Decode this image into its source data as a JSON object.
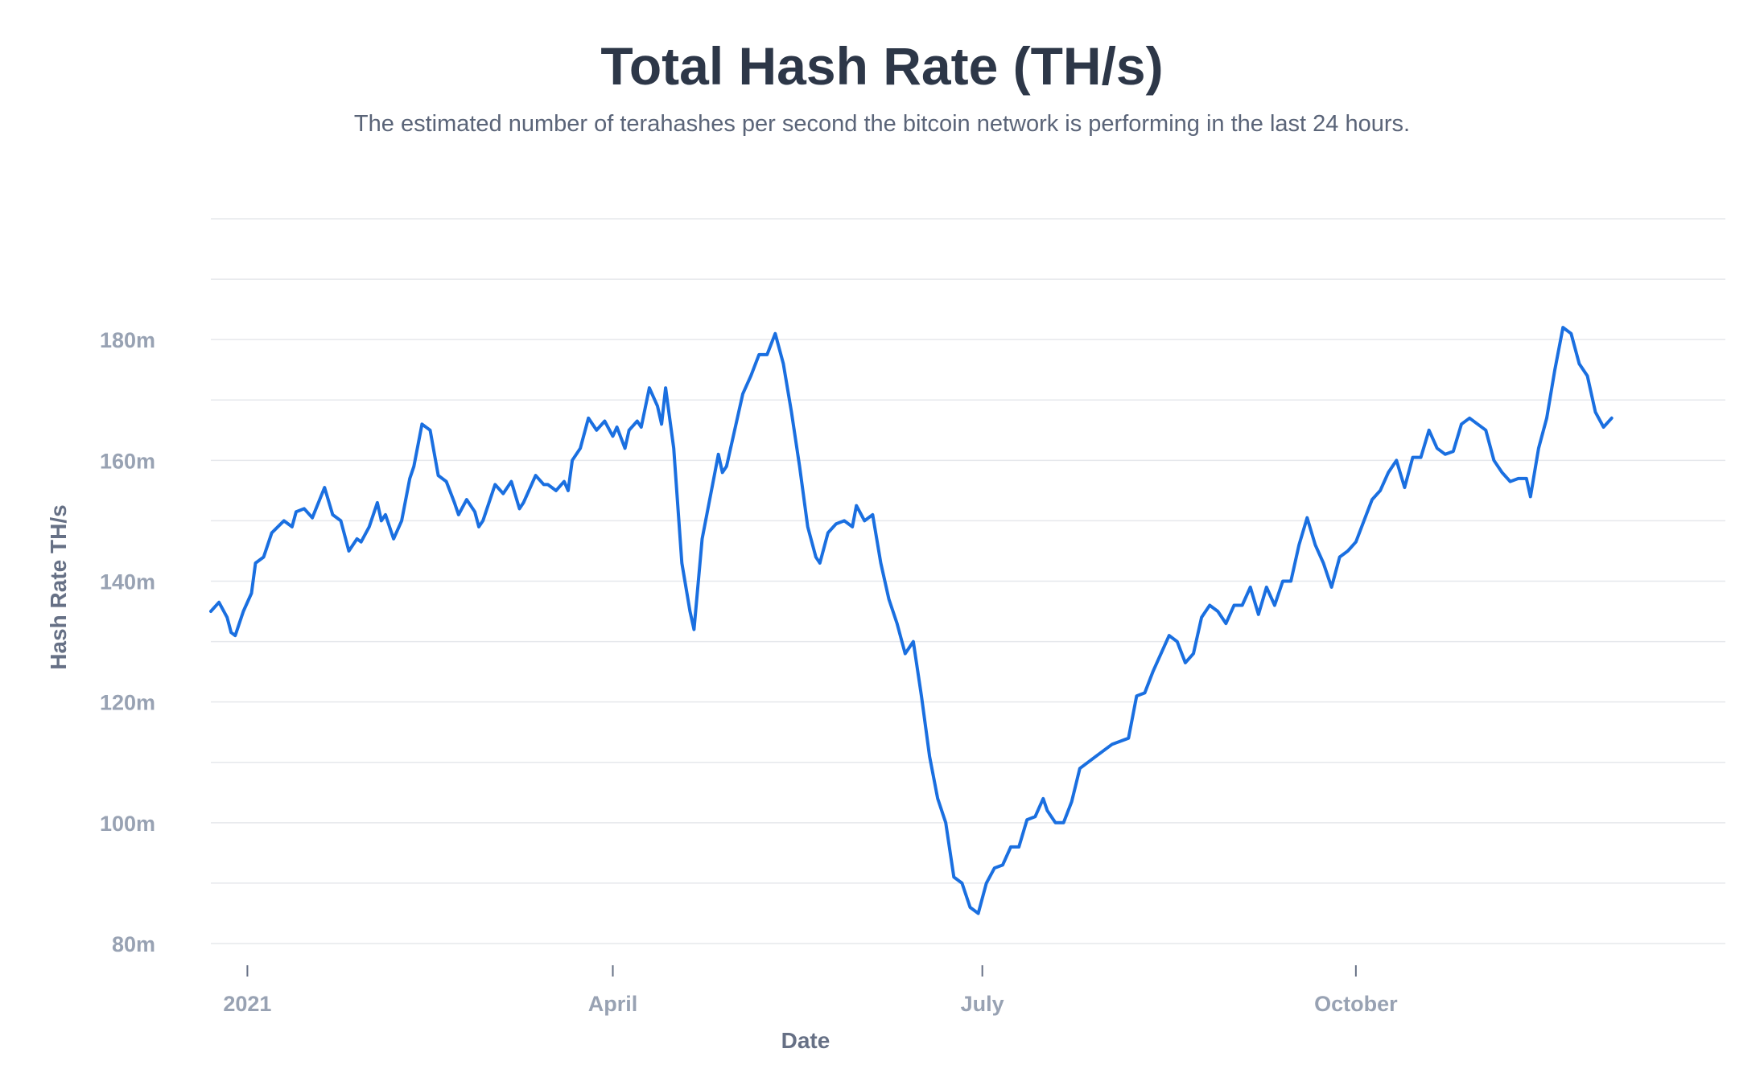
{
  "chart_data": {
    "type": "line",
    "title": "Total Hash Rate (TH/s)",
    "subtitle": "The estimated number of terahashes per second the bitcoin network is performing in the last 24 hours.",
    "xlabel": "Date",
    "ylabel": "Hash Rate TH/s",
    "y_ticks": [
      {
        "value": 80,
        "label": "80m"
      },
      {
        "value": 100,
        "label": "100m"
      },
      {
        "value": 120,
        "label": "120m"
      },
      {
        "value": 140,
        "label": "140m"
      },
      {
        "value": 160,
        "label": "160m"
      },
      {
        "value": 180,
        "label": "180m"
      }
    ],
    "x_ticks": [
      {
        "value": "2021-01-01",
        "label": "2021"
      },
      {
        "value": "2021-04-01",
        "label": "April"
      },
      {
        "value": "2021-07-01",
        "label": "July"
      },
      {
        "value": "2021-10-01",
        "label": "October"
      }
    ],
    "xlim": [
      "2020-12-23",
      "2021-12-31"
    ],
    "ylim": [
      80,
      200
    ],
    "grid": "horizontal",
    "line_color": "#1a6fe0",
    "series": [
      {
        "values_unit": "million TH/s",
        "points": [
          [
            "2020-12-23",
            135.0
          ],
          [
            "2020-12-25",
            136.5
          ],
          [
            "2020-12-27",
            134.0
          ],
          [
            "2020-12-28",
            131.5
          ],
          [
            "2020-12-29",
            131.0
          ],
          [
            "2020-12-31",
            135.0
          ],
          [
            "2021-01-02",
            138.0
          ],
          [
            "2021-01-03",
            143.0
          ],
          [
            "2021-01-05",
            144.0
          ],
          [
            "2021-01-07",
            148.0
          ],
          [
            "2021-01-10",
            150.0
          ],
          [
            "2021-01-12",
            149.0
          ],
          [
            "2021-01-13",
            151.5
          ],
          [
            "2021-01-15",
            152.0
          ],
          [
            "2021-01-17",
            150.5
          ],
          [
            "2021-01-20",
            155.5
          ],
          [
            "2021-01-22",
            151.0
          ],
          [
            "2021-01-24",
            150.0
          ],
          [
            "2021-01-26",
            145.0
          ],
          [
            "2021-01-28",
            147.0
          ],
          [
            "2021-01-29",
            146.5
          ],
          [
            "2021-01-31",
            149.0
          ],
          [
            "2021-02-02",
            153.0
          ],
          [
            "2021-02-03",
            150.0
          ],
          [
            "2021-02-04",
            151.0
          ],
          [
            "2021-02-06",
            147.0
          ],
          [
            "2021-02-08",
            150.0
          ],
          [
            "2021-02-10",
            157.0
          ],
          [
            "2021-02-11",
            159.0
          ],
          [
            "2021-02-13",
            166.0
          ],
          [
            "2021-02-15",
            165.0
          ],
          [
            "2021-02-17",
            157.5
          ],
          [
            "2021-02-19",
            156.5
          ],
          [
            "2021-02-21",
            153.0
          ],
          [
            "2021-02-22",
            151.0
          ],
          [
            "2021-02-24",
            153.5
          ],
          [
            "2021-02-26",
            151.5
          ],
          [
            "2021-02-27",
            149.0
          ],
          [
            "2021-02-28",
            150.0
          ],
          [
            "2021-03-03",
            156.0
          ],
          [
            "2021-03-05",
            154.5
          ],
          [
            "2021-03-07",
            156.5
          ],
          [
            "2021-03-09",
            152.0
          ],
          [
            "2021-03-10",
            153.0
          ],
          [
            "2021-03-13",
            157.5
          ],
          [
            "2021-03-15",
            156.0
          ],
          [
            "2021-03-16",
            156.0
          ],
          [
            "2021-03-18",
            155.0
          ],
          [
            "2021-03-20",
            156.5
          ],
          [
            "2021-03-21",
            155.0
          ],
          [
            "2021-03-22",
            160.0
          ],
          [
            "2021-03-24",
            162.0
          ],
          [
            "2021-03-26",
            167.0
          ],
          [
            "2021-03-28",
            165.0
          ],
          [
            "2021-03-30",
            166.5
          ],
          [
            "2021-04-01",
            164.0
          ],
          [
            "2021-04-02",
            165.5
          ],
          [
            "2021-04-04",
            162.0
          ],
          [
            "2021-04-05",
            165.0
          ],
          [
            "2021-04-07",
            166.5
          ],
          [
            "2021-04-08",
            165.5
          ],
          [
            "2021-04-10",
            172.0
          ],
          [
            "2021-04-12",
            169.0
          ],
          [
            "2021-04-13",
            166.0
          ],
          [
            "2021-04-14",
            172.0
          ],
          [
            "2021-04-16",
            162.0
          ],
          [
            "2021-04-18",
            143.0
          ],
          [
            "2021-04-20",
            135.0
          ],
          [
            "2021-04-21",
            132.0
          ],
          [
            "2021-04-23",
            147.0
          ],
          [
            "2021-04-25",
            154.0
          ],
          [
            "2021-04-27",
            161.0
          ],
          [
            "2021-04-28",
            158.0
          ],
          [
            "2021-04-29",
            159.0
          ],
          [
            "2021-05-01",
            165.0
          ],
          [
            "2021-05-03",
            171.0
          ],
          [
            "2021-05-05",
            174.0
          ],
          [
            "2021-05-07",
            177.5
          ],
          [
            "2021-05-09",
            177.5
          ],
          [
            "2021-05-11",
            181.0
          ],
          [
            "2021-05-13",
            176.0
          ],
          [
            "2021-05-15",
            168.0
          ],
          [
            "2021-05-17",
            159.0
          ],
          [
            "2021-05-19",
            149.0
          ],
          [
            "2021-05-21",
            144.0
          ],
          [
            "2021-05-22",
            143.0
          ],
          [
            "2021-05-24",
            148.0
          ],
          [
            "2021-05-26",
            149.5
          ],
          [
            "2021-05-28",
            150.0
          ],
          [
            "2021-05-30",
            149.0
          ],
          [
            "2021-05-31",
            152.5
          ],
          [
            "2021-06-02",
            150.0
          ],
          [
            "2021-06-04",
            151.0
          ],
          [
            "2021-06-06",
            143.0
          ],
          [
            "2021-06-08",
            137.0
          ],
          [
            "2021-06-10",
            133.0
          ],
          [
            "2021-06-12",
            128.0
          ],
          [
            "2021-06-14",
            130.0
          ],
          [
            "2021-06-16",
            121.0
          ],
          [
            "2021-06-18",
            111.0
          ],
          [
            "2021-06-20",
            104.0
          ],
          [
            "2021-06-22",
            100.0
          ],
          [
            "2021-06-24",
            91.0
          ],
          [
            "2021-06-26",
            90.0
          ],
          [
            "2021-06-28",
            86.0
          ],
          [
            "2021-06-30",
            85.0
          ],
          [
            "2021-07-02",
            90.0
          ],
          [
            "2021-07-04",
            92.5
          ],
          [
            "2021-07-06",
            93.0
          ],
          [
            "2021-07-08",
            96.0
          ],
          [
            "2021-07-10",
            96.0
          ],
          [
            "2021-07-12",
            100.5
          ],
          [
            "2021-07-14",
            101.0
          ],
          [
            "2021-07-16",
            104.0
          ],
          [
            "2021-07-17",
            102.0
          ],
          [
            "2021-07-19",
            100.0
          ],
          [
            "2021-07-21",
            100.0
          ],
          [
            "2021-07-23",
            103.5
          ],
          [
            "2021-07-25",
            109.0
          ],
          [
            "2021-07-27",
            110.0
          ],
          [
            "2021-07-29",
            111.0
          ],
          [
            "2021-07-31",
            112.0
          ],
          [
            "2021-08-02",
            113.0
          ],
          [
            "2021-08-04",
            113.5
          ],
          [
            "2021-08-06",
            114.0
          ],
          [
            "2021-08-08",
            121.0
          ],
          [
            "2021-08-10",
            121.5
          ],
          [
            "2021-08-12",
            125.0
          ],
          [
            "2021-08-14",
            128.0
          ],
          [
            "2021-08-16",
            131.0
          ],
          [
            "2021-08-18",
            130.0
          ],
          [
            "2021-08-20",
            126.5
          ],
          [
            "2021-08-22",
            128.0
          ],
          [
            "2021-08-24",
            134.0
          ],
          [
            "2021-08-26",
            136.0
          ],
          [
            "2021-08-28",
            135.0
          ],
          [
            "2021-08-30",
            133.0
          ],
          [
            "2021-09-01",
            136.0
          ],
          [
            "2021-09-03",
            136.0
          ],
          [
            "2021-09-05",
            139.0
          ],
          [
            "2021-09-07",
            134.5
          ],
          [
            "2021-09-09",
            139.0
          ],
          [
            "2021-09-11",
            136.0
          ],
          [
            "2021-09-13",
            140.0
          ],
          [
            "2021-09-15",
            140.0
          ],
          [
            "2021-09-17",
            146.0
          ],
          [
            "2021-09-19",
            150.5
          ],
          [
            "2021-09-21",
            146.0
          ],
          [
            "2021-09-23",
            143.0
          ],
          [
            "2021-09-25",
            139.0
          ],
          [
            "2021-09-27",
            144.0
          ],
          [
            "2021-09-29",
            145.0
          ],
          [
            "2021-10-01",
            146.5
          ],
          [
            "2021-10-03",
            150.0
          ],
          [
            "2021-10-05",
            153.5
          ],
          [
            "2021-10-07",
            155.0
          ],
          [
            "2021-10-09",
            158.0
          ],
          [
            "2021-10-11",
            160.0
          ],
          [
            "2021-10-13",
            155.5
          ],
          [
            "2021-10-15",
            160.5
          ],
          [
            "2021-10-17",
            160.5
          ],
          [
            "2021-10-19",
            165.0
          ],
          [
            "2021-10-21",
            162.0
          ],
          [
            "2021-10-23",
            161.0
          ],
          [
            "2021-10-25",
            161.5
          ],
          [
            "2021-10-27",
            166.0
          ],
          [
            "2021-10-29",
            167.0
          ],
          [
            "2021-10-31",
            166.0
          ],
          [
            "2021-11-02",
            165.0
          ],
          [
            "2021-11-04",
            160.0
          ],
          [
            "2021-11-06",
            158.0
          ],
          [
            "2021-11-08",
            156.5
          ],
          [
            "2021-11-10",
            157.0
          ],
          [
            "2021-11-12",
            157.0
          ],
          [
            "2021-11-13",
            154.0
          ],
          [
            "2021-11-15",
            162.0
          ],
          [
            "2021-11-17",
            167.0
          ],
          [
            "2021-11-19",
            175.0
          ],
          [
            "2021-11-21",
            182.0
          ],
          [
            "2021-11-23",
            181.0
          ],
          [
            "2021-11-25",
            176.0
          ],
          [
            "2021-11-27",
            174.0
          ],
          [
            "2021-11-29",
            168.0
          ],
          [
            "2021-12-01",
            165.5
          ],
          [
            "2021-12-03",
            167.0
          ]
        ]
      }
    ]
  }
}
